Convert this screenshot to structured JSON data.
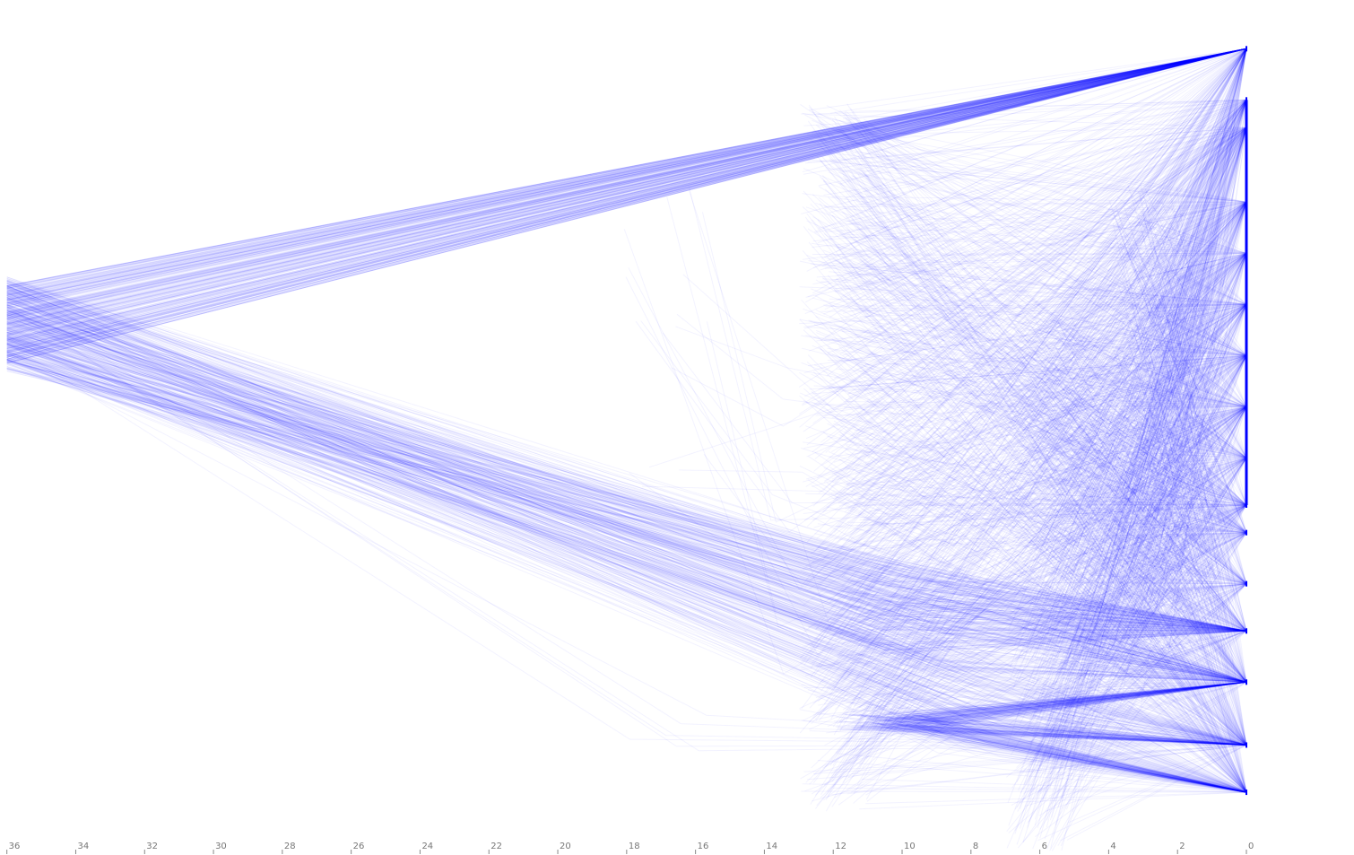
{
  "chart_data": {
    "type": "line",
    "title": "",
    "xlabel": "",
    "ylabel": "",
    "xlim": [
      36.2,
      0
    ],
    "x_ticks": [
      36,
      34,
      32,
      30,
      28,
      26,
      24,
      22,
      20,
      18,
      16,
      14,
      12,
      10,
      8,
      6,
      4,
      2,
      0
    ],
    "x_tick_labels": [
      "36",
      "34",
      "32",
      "30",
      "28",
      "26",
      "24",
      "22",
      "20",
      "18",
      "16",
      "14",
      "12",
      "10",
      "8",
      "6",
      "4",
      "2",
      "0"
    ],
    "y_axis_visible": false,
    "grid": false,
    "legend": "none",
    "line_color": "#0000ff",
    "line_opacity": 0.05,
    "ylim": [
      0,
      1
    ],
    "terminal_nodes_at_x0": [
      0.97,
      0.905,
      0.87,
      0.775,
      0.71,
      0.645,
      0.58,
      0.515,
      0.45,
      0.39,
      0.355,
      0.29,
      0.23,
      0.165,
      0.085,
      0.025
    ],
    "series": [
      {
        "points": [
          [
            36,
            0.62
          ],
          [
            0,
            0.97
          ]
        ],
        "count": 260,
        "spread": 0.05
      },
      {
        "points": [
          [
            36,
            0.62
          ],
          [
            10,
            0.26
          ],
          [
            0,
            0.23
          ]
        ],
        "count": 140,
        "spread": 0.06
      },
      {
        "points": [
          [
            36,
            0.62
          ],
          [
            9,
            0.24
          ],
          [
            0,
            0.165
          ]
        ],
        "count": 110,
        "spread": 0.06
      },
      {
        "points": [
          [
            36,
            0.62
          ],
          [
            8,
            0.15
          ],
          [
            0,
            0.085
          ]
        ],
        "count": 70,
        "spread": 0.05
      },
      {
        "points": [
          [
            36,
            0.62
          ],
          [
            8,
            0.12
          ],
          [
            0,
            0.025
          ]
        ],
        "count": 60,
        "spread": 0.05
      },
      {
        "points": [
          [
            10,
            0.115
          ],
          [
            0,
            0.165
          ]
        ],
        "count": 110,
        "spread": 0.01
      },
      {
        "points": [
          [
            10,
            0.115
          ],
          [
            0,
            0.025
          ]
        ],
        "count": 90,
        "spread": 0.01
      },
      {
        "points": [
          [
            11,
            0.115
          ],
          [
            0,
            0.085
          ]
        ],
        "count": 70,
        "spread": 0.01
      },
      {
        "points": [
          [
            12,
            0.45
          ],
          [
            0,
            0.905
          ]
        ],
        "count": 900,
        "spread": 0.45
      },
      {
        "points": [
          [
            6,
            0.3
          ],
          [
            0,
            0.6
          ]
        ],
        "count": 700,
        "spread": 0.35
      },
      {
        "points": [
          [
            3,
            0.5
          ],
          [
            0,
            0.7
          ]
        ],
        "count": 500,
        "spread": 0.3
      },
      {
        "points": [
          [
            4,
            0.25
          ],
          [
            0,
            0.29
          ]
        ],
        "count": 120,
        "spread": 0.12
      },
      {
        "points": [
          [
            17,
            0.6
          ],
          [
            13,
            0.37
          ],
          [
            0,
            0.58
          ]
        ],
        "count": 20,
        "spread": 0.2
      },
      {
        "points": [
          [
            36,
            0.62
          ],
          [
            17,
            0.115
          ],
          [
            0,
            0.085
          ]
        ],
        "count": 6,
        "spread": 0.04
      }
    ]
  }
}
